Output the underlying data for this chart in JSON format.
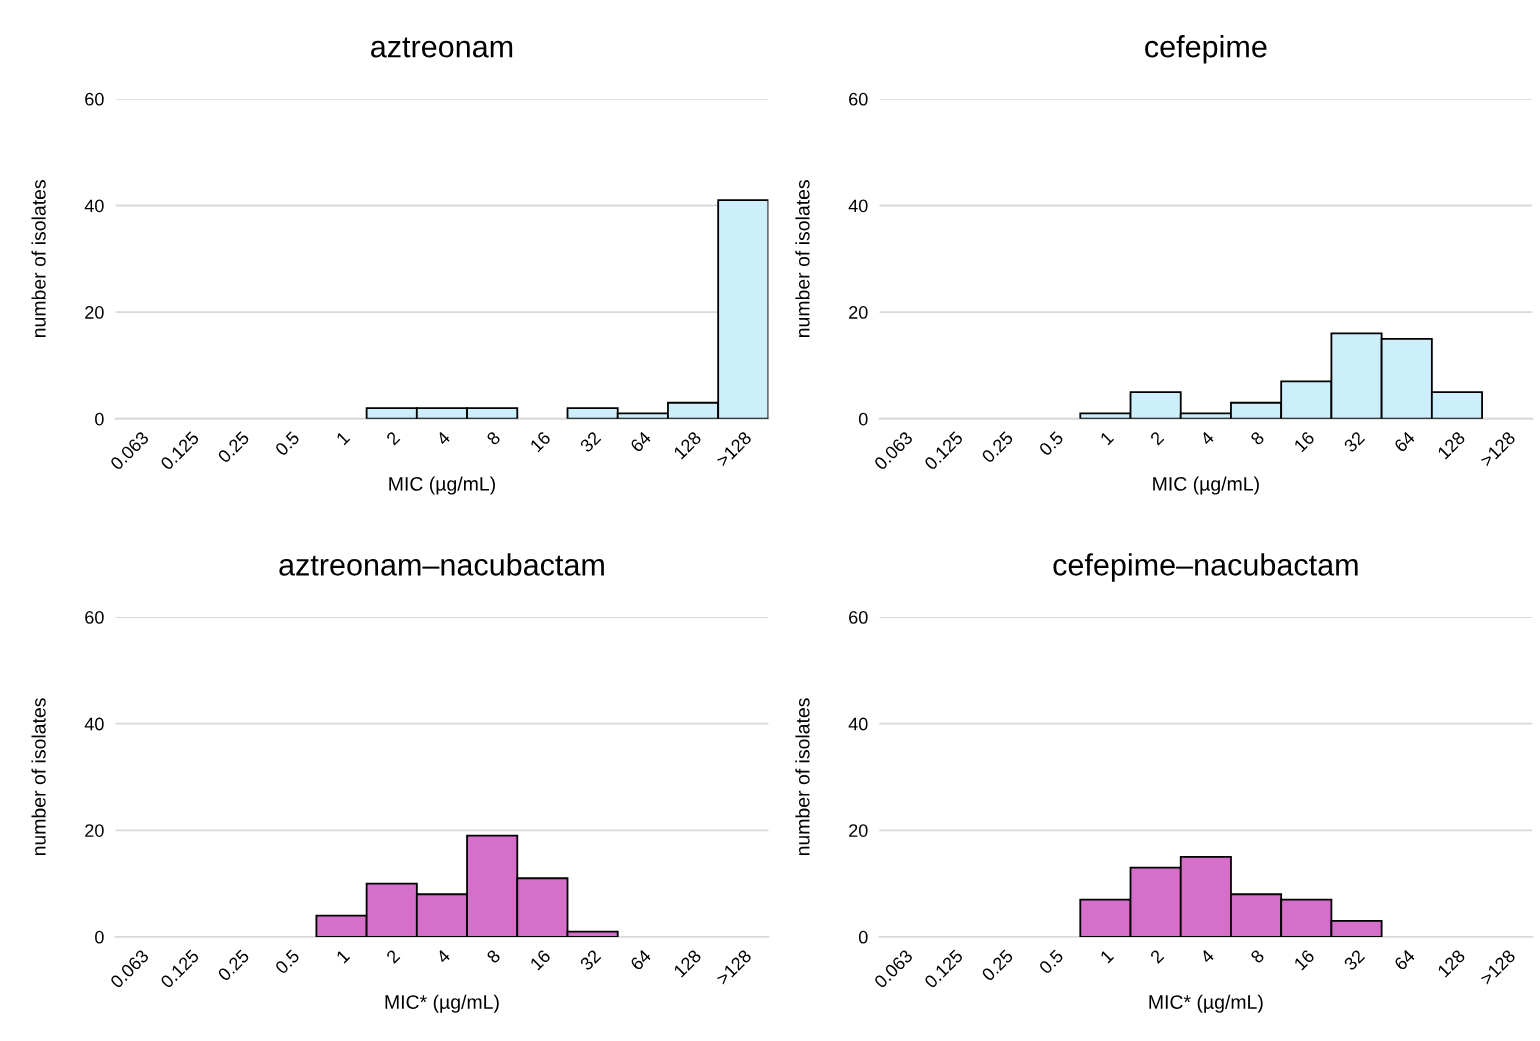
{
  "chart_data": [
    {
      "type": "bar",
      "title": "aztreonam",
      "xlabel": "MIC (µg/mL)",
      "ylabel": "number of isolates",
      "categories": [
        "0.063",
        "0.125",
        "0.25",
        "0.5",
        "1",
        "2",
        "4",
        "8",
        "16",
        "32",
        "64",
        "128",
        ">128"
      ],
      "values": [
        0,
        0,
        0,
        0,
        0,
        2,
        2,
        2,
        0,
        2,
        1,
        3,
        41
      ],
      "color": "#cdeefb",
      "ylim": [
        0,
        60
      ],
      "yticks": [
        0,
        20,
        40,
        60
      ],
      "grid": "y",
      "legend": false
    },
    {
      "type": "bar",
      "title": "cefepime",
      "xlabel": "MIC (µg/mL)",
      "ylabel": "number of isolates",
      "categories": [
        "0.063",
        "0.125",
        "0.25",
        "0.5",
        "1",
        "2",
        "4",
        "8",
        "16",
        "32",
        "64",
        "128",
        ">128"
      ],
      "values": [
        0,
        0,
        0,
        0,
        1,
        5,
        1,
        3,
        7,
        16,
        15,
        5,
        0
      ],
      "color": "#cdeefb",
      "ylim": [
        0,
        60
      ],
      "yticks": [
        0,
        20,
        40,
        60
      ],
      "grid": "y",
      "legend": false
    },
    {
      "type": "bar",
      "title": "aztreonam–nacubactam",
      "xlabel": "MIC* (µg/mL)",
      "ylabel": "number of isolates",
      "categories": [
        "0.063",
        "0.125",
        "0.25",
        "0.5",
        "1",
        "2",
        "4",
        "8",
        "16",
        "32",
        "64",
        "128",
        ">128"
      ],
      "values": [
        0,
        0,
        0,
        0,
        4,
        10,
        8,
        19,
        11,
        1,
        0,
        0,
        0
      ],
      "color": "#d66fc9",
      "ylim": [
        0,
        60
      ],
      "yticks": [
        0,
        20,
        40,
        60
      ],
      "grid": "y",
      "legend": false
    },
    {
      "type": "bar",
      "title": "cefepime–nacubactam",
      "xlabel": "MIC* (µg/mL)",
      "ylabel": "number of isolates",
      "categories": [
        "0.063",
        "0.125",
        "0.25",
        "0.5",
        "1",
        "2",
        "4",
        "8",
        "16",
        "32",
        "64",
        "128",
        ">128"
      ],
      "values": [
        0,
        0,
        0,
        0,
        7,
        13,
        15,
        8,
        7,
        3,
        0,
        0,
        0
      ],
      "color": "#d66fc9",
      "ylim": [
        0,
        60
      ],
      "yticks": [
        0,
        20,
        40,
        60
      ],
      "grid": "y",
      "legend": false
    }
  ]
}
